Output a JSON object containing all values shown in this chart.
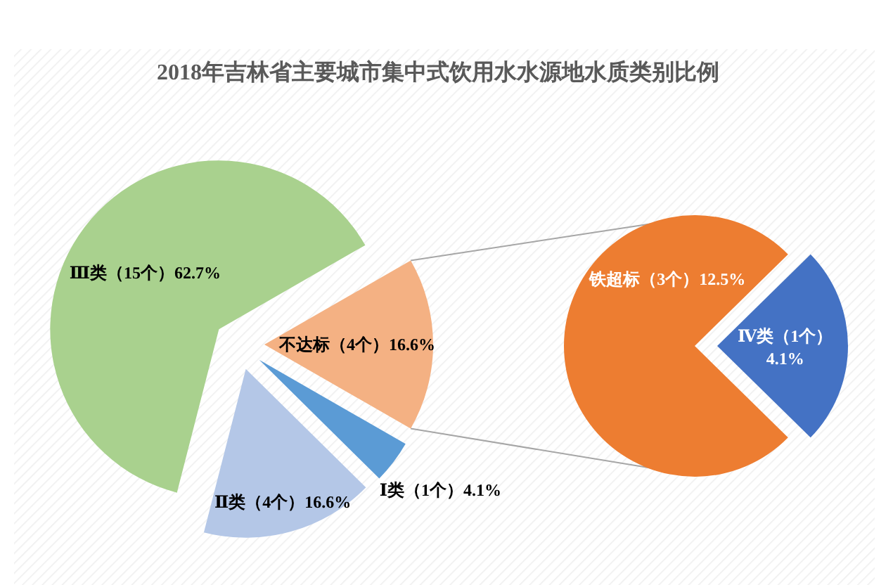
{
  "chart_data": [
    {
      "type": "pie",
      "title": "2018年吉林省主要城市集中式饮用水水源地水质类别比例",
      "categories": [
        "不达标（4个）",
        "Ⅰ类（1个）",
        "Ⅱ类（4个）",
        "Ⅲ类（15个）"
      ],
      "values": [
        16.6,
        4.1,
        16.6,
        62.7
      ],
      "colors": [
        "#f4b183",
        "#5b9bd5",
        "#b4c7e7",
        "#a9d18e"
      ],
      "value_labels": [
        "16.6%",
        "4.1%",
        "16.6%",
        "62.7%"
      ]
    },
    {
      "type": "pie",
      "categories": [
        "铁超标（3个）",
        "Ⅳ类（1个）"
      ],
      "values": [
        12.5,
        4.1
      ],
      "colors": [
        "#ed7d31",
        "#4472c4"
      ],
      "value_labels": [
        "12.5%",
        "4.1%"
      ]
    }
  ]
}
